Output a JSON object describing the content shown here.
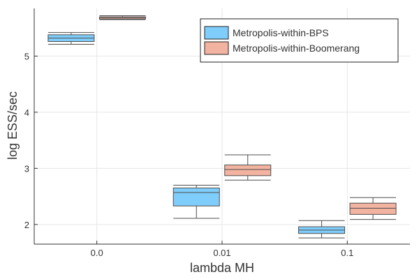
{
  "chart_data": {
    "type": "boxplot",
    "xlabel": "lambda MH",
    "ylabel": "log ESS/sec",
    "categories": [
      "0.0",
      "0.01",
      "0.1"
    ],
    "ylim": [
      1.65,
      5.85
    ],
    "yticks": [
      2,
      3,
      4,
      5
    ],
    "grid": true,
    "legend_position": "top-right",
    "series": [
      {
        "name": "Metropolis-within-BPS",
        "color": "#7fcdfb",
        "stroke": "#4d4d4d",
        "boxes": [
          {
            "category": "0.0",
            "min": 5.21,
            "q1": 5.26,
            "median": 5.32,
            "q3": 5.38,
            "max": 5.42
          },
          {
            "category": "0.01",
            "min": 2.11,
            "q1": 2.33,
            "median": 2.57,
            "q3": 2.65,
            "max": 2.7
          },
          {
            "category": "0.1",
            "min": 1.76,
            "q1": 1.84,
            "median": 1.9,
            "q3": 1.96,
            "max": 2.07
          }
        ]
      },
      {
        "name": "Metropolis-within-Boomerang",
        "color": "#f2b3a0",
        "stroke": "#4d4d4d",
        "boxes": [
          {
            "category": "0.0",
            "min": 5.65,
            "q1": 5.66,
            "median": 5.68,
            "q3": 5.7,
            "max": 5.72
          },
          {
            "category": "0.01",
            "min": 2.79,
            "q1": 2.87,
            "median": 2.98,
            "q3": 3.06,
            "max": 3.24
          },
          {
            "category": "0.1",
            "min": 2.09,
            "q1": 2.18,
            "median": 2.29,
            "q3": 2.38,
            "max": 2.48
          }
        ]
      }
    ]
  }
}
